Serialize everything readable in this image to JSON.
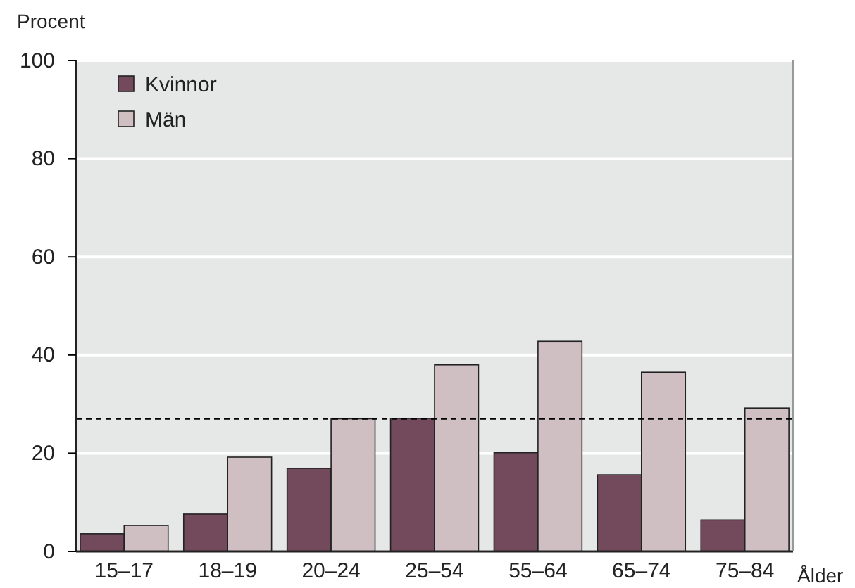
{
  "chart_data": {
    "type": "bar",
    "ylabel": "Procent",
    "xlabel": "Ålder",
    "categories": [
      "15–17",
      "18–19",
      "20–24",
      "25–54",
      "55–64",
      "65–74",
      "75–84"
    ],
    "series": [
      {
        "name": "Kvinnor",
        "color": "#734a5c",
        "values": [
          3.6,
          7.6,
          16.9,
          27.1,
          20.1,
          15.6,
          6.4
        ]
      },
      {
        "name": "Män",
        "color": "#cfbfc3",
        "values": [
          5.3,
          19.2,
          27.0,
          38.0,
          42.8,
          36.5,
          29.2
        ]
      }
    ],
    "ylim": [
      0,
      100
    ],
    "yticks": [
      0,
      20,
      40,
      60,
      80,
      100
    ],
    "grid": "y",
    "legend": "top left",
    "ref_lines": [
      {
        "axis": "y",
        "value": 27,
        "label": null,
        "line_style": "dashed",
        "color": "#000000"
      }
    ]
  }
}
